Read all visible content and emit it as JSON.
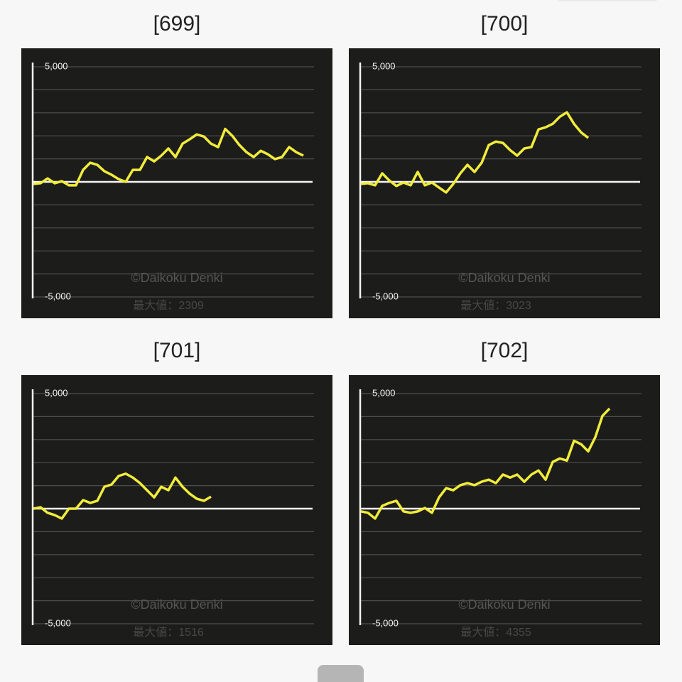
{
  "chart_data": [
    {
      "type": "line",
      "title": "[699]",
      "watermark": "©Daikoku Denki",
      "max_label": "最大値：2309",
      "ylim": [
        -5000,
        5000
      ],
      "yticks": [
        {
          "value": 5000,
          "label": "5,000"
        },
        {
          "value": -5000,
          "label": "-5,000"
        }
      ],
      "grid": [
        5000,
        4000,
        3000,
        2000,
        1000,
        0,
        -1000,
        -2000,
        -3000,
        -4000,
        -5000
      ],
      "series": [
        {
          "color": "#f2ec3a",
          "values": [
            -90,
            -60,
            150,
            -60,
            30,
            -150,
            -150,
            520,
            830,
            740,
            460,
            310,
            120,
            0,
            520,
            520,
            1080,
            890,
            1140,
            1450,
            1080,
            1660,
            1850,
            2060,
            1970,
            1660,
            1510,
            2300,
            2000,
            1600,
            1290,
            1080,
            1350,
            1200,
            990,
            1080,
            1510,
            1290,
            1140
          ]
        }
      ]
    },
    {
      "type": "line",
      "title": "[700]",
      "watermark": "©Daikoku Denki",
      "max_label": "最大値：3023",
      "ylim": [
        -5000,
        5000
      ],
      "yticks": [
        {
          "value": 5000,
          "label": "5,000"
        },
        {
          "value": -5000,
          "label": "-5,000"
        }
      ],
      "grid": [
        5000,
        4000,
        3000,
        2000,
        1000,
        0,
        -1000,
        -2000,
        -3000,
        -4000,
        -5000
      ],
      "series": [
        {
          "color": "#f2ec3a",
          "values": [
            -90,
            -60,
            -150,
            370,
            60,
            -180,
            -30,
            -150,
            430,
            -150,
            -30,
            -250,
            -460,
            -90,
            370,
            740,
            430,
            830,
            1600,
            1750,
            1690,
            1380,
            1140,
            1450,
            1510,
            2280,
            2370,
            2520,
            2830,
            3020,
            2520,
            2150,
            1910
          ]
        }
      ]
    },
    {
      "type": "line",
      "title": "[701]",
      "watermark": "©Daikoku Denki",
      "max_label": "最大値：1516",
      "ylim": [
        -5000,
        5000
      ],
      "yticks": [
        {
          "value": 5000,
          "label": "5,000"
        },
        {
          "value": -5000,
          "label": "-5,000"
        }
      ],
      "grid": [
        5000,
        4000,
        3000,
        2000,
        1000,
        0,
        -1000,
        -2000,
        -3000,
        -4000,
        -5000
      ],
      "series": [
        {
          "color": "#f2ec3a",
          "values": [
            0,
            60,
            -180,
            -280,
            -430,
            0,
            0,
            370,
            250,
            340,
            950,
            1050,
            1420,
            1520,
            1350,
            1110,
            800,
            490,
            950,
            800,
            1350,
            950,
            650,
            430,
            340,
            520
          ]
        }
      ]
    },
    {
      "type": "line",
      "title": "[702]",
      "watermark": "©Daikoku Denki",
      "max_label": "最大値：4355",
      "ylim": [
        -5000,
        5000
      ],
      "yticks": [
        {
          "value": 5000,
          "label": "5,000"
        },
        {
          "value": -5000,
          "label": "-5,000"
        }
      ],
      "grid": [
        5000,
        4000,
        3000,
        2000,
        1000,
        0,
        -1000,
        -2000,
        -3000,
        -4000,
        -5000
      ],
      "series": [
        {
          "color": "#f2ec3a",
          "values": [
            -120,
            -180,
            -430,
            120,
            250,
            340,
            -120,
            -180,
            -120,
            30,
            -180,
            490,
            890,
            800,
            1020,
            1110,
            1020,
            1170,
            1260,
            1110,
            1480,
            1350,
            1480,
            1170,
            1480,
            1660,
            1260,
            2030,
            2180,
            2090,
            2950,
            2800,
            2490,
            3110,
            4030,
            4350
          ]
        }
      ]
    }
  ]
}
